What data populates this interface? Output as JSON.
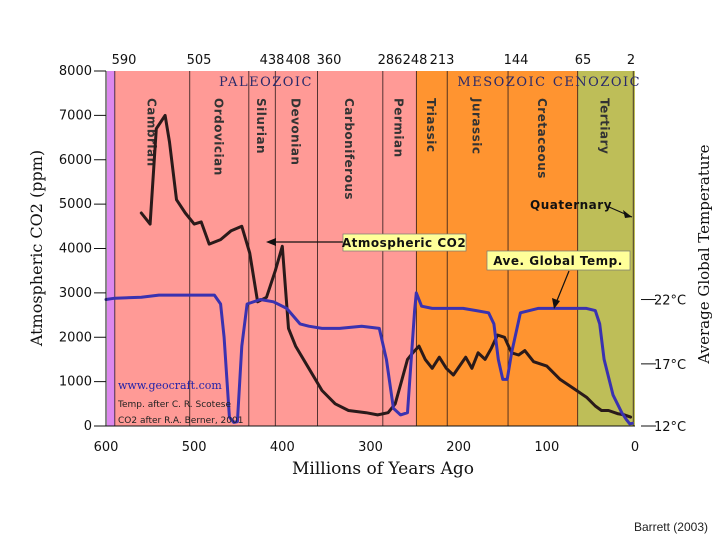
{
  "chart_data": {
    "type": "line",
    "title": "",
    "xlabel": "Millions of Years Ago",
    "ylabel": "Atmospheric CO2 (ppm)",
    "y2label": "Average Global Temperature",
    "xlim": [
      600,
      0
    ],
    "ylim": [
      0,
      8000
    ],
    "x_ticks": [
      "600",
      "500",
      "400",
      "300",
      "200",
      "100",
      "0"
    ],
    "y_ticks": [
      "0",
      "1000",
      "2000",
      "3000",
      "4000",
      "5000",
      "6000",
      "7000",
      "8000"
    ],
    "y2_ticks": [
      {
        "label": "12°C",
        "ppm": 0
      },
      {
        "label": "17°C",
        "ppm": 1400
      },
      {
        "label": "22°C",
        "ppm": 2850
      }
    ],
    "boundary_labels": [
      "590",
      "505",
      "438",
      "408",
      "360",
      "286",
      "248",
      "213",
      "144",
      "65",
      "2"
    ],
    "boundaries": [
      590,
      505,
      438,
      408,
      360,
      286,
      248,
      213,
      144,
      65,
      2
    ],
    "eras": [
      {
        "name": "PALEOZOIC",
        "from": 590,
        "to": 248,
        "color": "#ff9a96"
      },
      {
        "name": "MESOZOIC",
        "from": 248,
        "to": 65,
        "color": "#ff9430"
      },
      {
        "name": "CENOZOIC",
        "from": 65,
        "to": 0,
        "color": "#bebe58"
      }
    ],
    "precambrian_color": "#dd88ee",
    "periods": [
      {
        "name": "Cambrian",
        "from": 590,
        "to": 505
      },
      {
        "name": "Ordovician",
        "from": 505,
        "to": 438
      },
      {
        "name": "Silurian",
        "from": 438,
        "to": 408
      },
      {
        "name": "Devonian",
        "from": 408,
        "to": 360
      },
      {
        "name": "Carboniferous",
        "from": 360,
        "to": 286
      },
      {
        "name": "Permian",
        "from": 286,
        "to": 248
      },
      {
        "name": "Triassic",
        "from": 248,
        "to": 213
      },
      {
        "name": "Jurassic",
        "from": 213,
        "to": 144
      },
      {
        "name": "Cretaceous",
        "from": 144,
        "to": 65
      },
      {
        "name": "Tertiary",
        "from": 65,
        "to": 2
      }
    ],
    "annotations": {
      "quaternary": "Quaternary",
      "co2_label": "Atmospheric CO2",
      "temp_label": "Ave. Global Temp.",
      "website": "www.geocraft.com",
      "temp_source": "Temp. after C. R. Scotese",
      "co2_source": "CO2 after R.A. Berner, 2001"
    },
    "series": [
      {
        "name": "Atmospheric CO2",
        "color": "#2a1a1a",
        "x": [
          560,
          550,
          543,
          533,
          528,
          520,
          510,
          500,
          492,
          483,
          470,
          458,
          446,
          437,
          428,
          418,
          408,
          400,
          393,
          385,
          370,
          355,
          340,
          325,
          305,
          292,
          280,
          272,
          265,
          258,
          252,
          245,
          238,
          230,
          222,
          214,
          206,
          199,
          192,
          185,
          178,
          170,
          163,
          156,
          148,
          140,
          132,
          125,
          115,
          100,
          85,
          70,
          55,
          45,
          38,
          30,
          20,
          12,
          5
        ],
        "y": [
          4800,
          4550,
          6700,
          7000,
          6400,
          5100,
          4800,
          4550,
          4600,
          4100,
          4200,
          4400,
          4500,
          3900,
          2800,
          2900,
          3500,
          4050,
          2200,
          1800,
          1300,
          800,
          500,
          350,
          300,
          250,
          300,
          500,
          1000,
          1500,
          1650,
          1800,
          1500,
          1300,
          1550,
          1300,
          1150,
          1350,
          1550,
          1300,
          1650,
          1500,
          1750,
          2050,
          2000,
          1650,
          1600,
          1700,
          1450,
          1350,
          1050,
          850,
          650,
          450,
          350,
          350,
          280,
          250,
          200
        ]
      },
      {
        "name": "Ave. Global Temp.",
        "color": "#3a32b0",
        "x": [
          600,
          590,
          560,
          540,
          520,
          498,
          477,
          470,
          466,
          460,
          455,
          451,
          446,
          440,
          425,
          410,
          395,
          380,
          370,
          355,
          335,
          310,
          290,
          282,
          274,
          266,
          258,
          250,
          248,
          242,
          230,
          210,
          195,
          180,
          166,
          160,
          155,
          150,
          145,
          140,
          130,
          110,
          95,
          70,
          55,
          45,
          40,
          35,
          25,
          15,
          10,
          6,
          3
        ],
        "y": [
          2850,
          2880,
          2900,
          2950,
          2950,
          2950,
          2950,
          2750,
          2000,
          200,
          80,
          100,
          1800,
          2750,
          2850,
          2800,
          2650,
          2300,
          2250,
          2200,
          2200,
          2250,
          2200,
          1500,
          400,
          250,
          300,
          2600,
          3000,
          2700,
          2650,
          2650,
          2650,
          2600,
          2550,
          2300,
          1500,
          1050,
          1050,
          1650,
          2550,
          2650,
          2650,
          2650,
          2650,
          2600,
          2300,
          1500,
          700,
          300,
          150,
          50,
          60
        ]
      }
    ]
  },
  "credit": "Barrett (2003)"
}
